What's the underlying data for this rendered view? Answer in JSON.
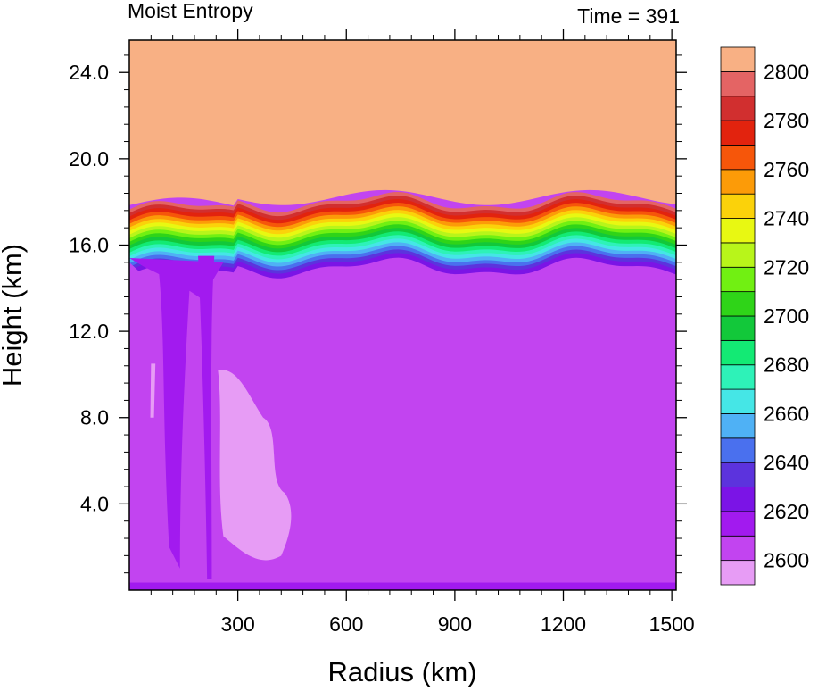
{
  "chart_data": {
    "type": "heatmap",
    "title_left": "Moist Entropy",
    "title_right": "Time = 391",
    "xlabel": "Radius (km)",
    "ylabel": "Height (km)",
    "xlim": [
      0,
      1512
    ],
    "ylim": [
      0,
      25.5
    ],
    "x_ticks": [
      300,
      600,
      900,
      1200,
      1500
    ],
    "x_tick_labels": [
      "300",
      "600",
      "900",
      "1200",
      "1500"
    ],
    "y_ticks": [
      4,
      8,
      12,
      16,
      20,
      24
    ],
    "y_tick_labels": [
      "4.0",
      "8.0",
      "12.0",
      "16.0",
      "20.0",
      "24.0"
    ],
    "colorbar": {
      "levels": [
        2600,
        2610,
        2620,
        2630,
        2640,
        2650,
        2660,
        2670,
        2680,
        2690,
        2700,
        2710,
        2720,
        2730,
        2740,
        2750,
        2760,
        2770,
        2780,
        2790,
        2800
      ],
      "labels": [
        "2600",
        "2620",
        "2640",
        "2660",
        "2680",
        "2700",
        "2720",
        "2740",
        "2760",
        "2780",
        "2800"
      ],
      "colors": [
        "#e79cf5",
        "#c244f0",
        "#a21aef",
        "#7b14e6",
        "#5c33dd",
        "#4a70ee",
        "#4fb1f5",
        "#45e6e6",
        "#2ef2b8",
        "#13ea74",
        "#12c83a",
        "#2fd418",
        "#71f012",
        "#b8f51a",
        "#e8f812",
        "#fbd20a",
        "#fc9b08",
        "#f6560a",
        "#e2230e",
        "#d12f2f",
        "#e46464",
        "#f8b084"
      ]
    },
    "fields": {
      "stratosphere_value": 2810,
      "troposphere_value": 2605,
      "inner_core_value": 2615,
      "dry_pocket_value": 2595
    }
  }
}
